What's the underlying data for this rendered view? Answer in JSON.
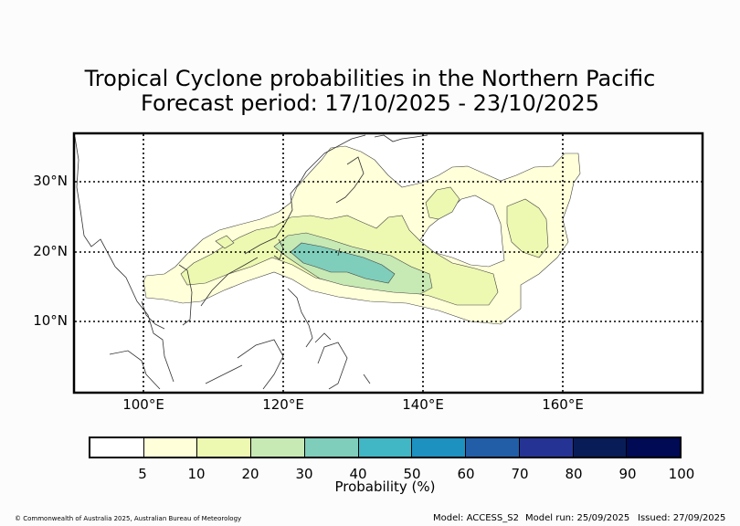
{
  "title": {
    "line1": "Tropical Cyclone probabilities in the Northern Pacific",
    "line2": "Forecast period: 17/10/2025 - 23/10/2025"
  },
  "map": {
    "lat_labels": [
      "30°N",
      "20°N",
      "10°N"
    ],
    "lon_labels": [
      "100°E",
      "120°E",
      "140°E",
      "160°E"
    ]
  },
  "colorbar": {
    "colors": [
      "#ffffff",
      "#ffffd9",
      "#edf8b1",
      "#c7e9b4",
      "#7fcdbb",
      "#41b6c4",
      "#1d91c0",
      "#225ea8",
      "#253494",
      "#081d58",
      "#000a55"
    ],
    "ticks": [
      "5",
      "10",
      "20",
      "30",
      "40",
      "50",
      "60",
      "70",
      "80",
      "90",
      "100"
    ],
    "label": "Probability (%)"
  },
  "footer": {
    "copyright": "© Commonwealth of Australia 2025, Australian Bureau of Meteorology",
    "model": "Model: ACCESS_S2",
    "model_run": "Model run: 25/09/2025",
    "issued": "Issued: 27/09/2025"
  }
}
